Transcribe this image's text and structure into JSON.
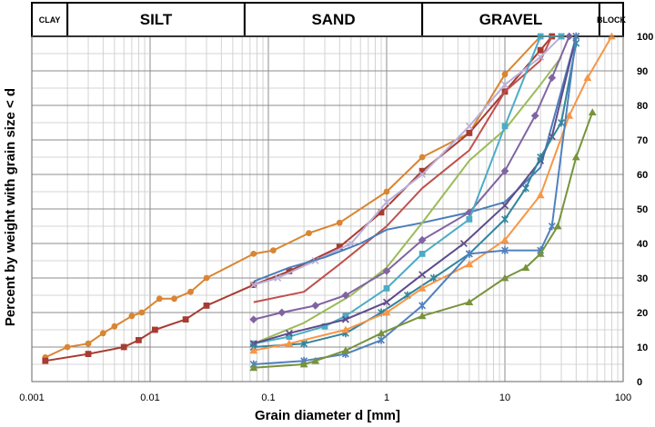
{
  "chart_data": {
    "type": "line",
    "xlabel": "Grain diameter d  [mm]",
    "ylabel": "Percent by weight with grain size < d",
    "xscale": "log",
    "xlim": [
      0.001,
      100
    ],
    "ylim": [
      0,
      100
    ],
    "x_ticks": [
      "0.001",
      "0.01",
      "0.1",
      "1",
      "10",
      "100"
    ],
    "y_ticks": [
      "0",
      "10",
      "20",
      "30",
      "40",
      "50",
      "60",
      "70",
      "80",
      "90",
      "100"
    ],
    "grid": true,
    "bands": [
      {
        "label": "CLAY",
        "from": 0.001,
        "to": 0.002
      },
      {
        "label": "SILT",
        "from": 0.002,
        "to": 0.063
      },
      {
        "label": "SAND",
        "from": 0.063,
        "to": 2
      },
      {
        "label": "GRAVEL",
        "from": 2,
        "to": 63
      },
      {
        "label": "BLOCK",
        "from": 63,
        "to": 100
      }
    ],
    "series": [
      {
        "color": "#D98531",
        "marker": "circle",
        "x": [
          0.0013,
          0.002,
          0.003,
          0.004,
          0.005,
          0.007,
          0.0085,
          0.012,
          0.016,
          0.022,
          0.03,
          0.075,
          0.11,
          0.22,
          0.4,
          1,
          2,
          5,
          10,
          20
        ],
        "y": [
          7,
          10,
          11,
          14,
          16,
          19,
          20,
          24,
          24,
          26,
          30,
          37,
          38,
          43,
          46,
          55,
          65,
          72,
          89,
          100
        ]
      },
      {
        "color": "#A83C32",
        "marker": "square",
        "x": [
          0.0013,
          0.003,
          0.006,
          0.008,
          0.011,
          0.02,
          0.03,
          0.075,
          0.15,
          0.4,
          0.9,
          2,
          5,
          10,
          20,
          25
        ],
        "y": [
          6,
          8,
          10,
          12,
          15,
          18,
          22,
          28,
          32,
          39,
          49,
          61,
          72,
          84,
          96,
          100
        ]
      },
      {
        "color": "#C0504D",
        "marker": "none",
        "x": [
          0.075,
          0.2,
          0.4,
          1,
          2,
          5,
          10,
          20,
          25
        ],
        "y": [
          23,
          26,
          34,
          45,
          56,
          67,
          84,
          93,
          100
        ]
      },
      {
        "color": "#B9B0DA",
        "marker": "x",
        "x": [
          0.075,
          0.12,
          0.25,
          0.5,
          1,
          2,
          5,
          10,
          20,
          30
        ],
        "y": [
          28,
          30,
          35,
          40,
          52,
          60,
          74,
          86,
          94,
          100
        ]
      },
      {
        "color": "#4A7EBB",
        "marker": "none",
        "x": [
          0.075,
          0.15,
          0.3,
          0.6,
          1,
          2,
          5,
          10,
          20,
          40
        ],
        "y": [
          29,
          33,
          36,
          40,
          44,
          46,
          49,
          52,
          62,
          100
        ]
      },
      {
        "color": "#9BBB59",
        "marker": "none",
        "x": [
          0.075,
          0.2,
          0.5,
          1,
          2,
          5,
          10,
          20,
          30
        ],
        "y": [
          11,
          17,
          25,
          33,
          46,
          64,
          73,
          86,
          94
        ]
      },
      {
        "color": "#8064A2",
        "marker": "diamond",
        "x": [
          0.075,
          0.13,
          0.25,
          0.45,
          1,
          2,
          5,
          10,
          18,
          25,
          35
        ],
        "y": [
          18,
          20,
          22,
          25,
          32,
          41,
          49,
          61,
          77,
          88,
          100
        ]
      },
      {
        "color": "#4BACC6",
        "marker": "square",
        "x": [
          0.075,
          0.15,
          0.3,
          0.45,
          1,
          2,
          5,
          10,
          20,
          30
        ],
        "y": [
          11,
          13,
          16,
          19,
          27,
          37,
          47,
          74,
          100,
          100
        ]
      },
      {
        "color": "#5F4B8B",
        "marker": "x",
        "x": [
          0.075,
          0.15,
          0.45,
          1,
          2,
          4.5,
          10,
          20,
          25,
          40
        ],
        "y": [
          11,
          14,
          18,
          23,
          31,
          40,
          51,
          64,
          71,
          100
        ]
      },
      {
        "color": "#31859C",
        "marker": "star",
        "x": [
          0.075,
          0.2,
          0.45,
          0.9,
          1.5,
          2.5,
          5,
          10,
          15,
          20,
          30,
          40
        ],
        "y": [
          10,
          11,
          14,
          20,
          25,
          30,
          37,
          47,
          56,
          65,
          75,
          98
        ]
      },
      {
        "color": "#F79646",
        "marker": "triangle",
        "x": [
          0.075,
          0.15,
          0.45,
          1,
          2,
          5,
          10,
          20,
          35,
          50,
          80
        ],
        "y": [
          9,
          11,
          15,
          20,
          27,
          34,
          41,
          54,
          77,
          88,
          100
        ]
      },
      {
        "color": "#4F81BD",
        "marker": "star",
        "x": [
          0.075,
          0.2,
          0.45,
          0.9,
          2,
          5,
          10,
          20,
          25,
          40
        ],
        "y": [
          5,
          6,
          8,
          12,
          22,
          37,
          38,
          38,
          45,
          100
        ]
      },
      {
        "color": "#77933C",
        "marker": "triangle",
        "x": [
          0.075,
          0.2,
          0.25,
          0.45,
          0.9,
          2,
          5,
          10,
          15,
          20,
          28,
          40,
          55
        ],
        "y": [
          4,
          5,
          6,
          9,
          14,
          19,
          23,
          30,
          33,
          37,
          45,
          65,
          78
        ]
      }
    ]
  }
}
